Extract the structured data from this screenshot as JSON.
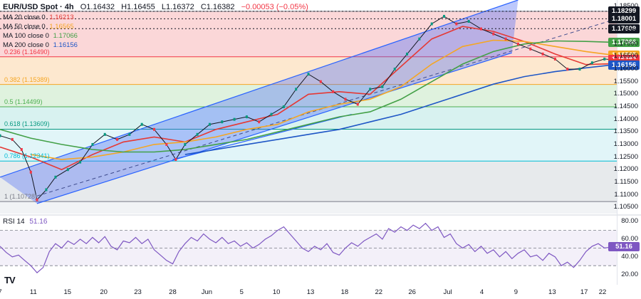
{
  "header": {
    "symbol": "EUR/USD Spot · 4h",
    "open": "O1.16432",
    "high": "H1.16455",
    "low": "L1.16372",
    "close": "C1.16382",
    "change": "−0.00053 (−0.05%)"
  },
  "ma_legend": [
    {
      "label": "MA 20 close 0",
      "value": "1.16213",
      "color": "#e53935"
    },
    {
      "label": "MA 50 close 0",
      "value": "1.16565",
      "color": "#f5a623"
    },
    {
      "label": "MA 100 close 0",
      "value": "1.17066",
      "color": "#43a047"
    },
    {
      "label": "MA 200 close 0",
      "value": "1.16156",
      "color": "#1e56c6"
    }
  ],
  "rsi_legend": {
    "label": "RSI 14",
    "value": "51.16"
  },
  "fib_labels": [
    {
      "text": "0.236 (1.16490)",
      "price": 1.1649
    },
    {
      "text": "0.382 (1.15389)",
      "price": 1.15389
    },
    {
      "text": "0.5 (1.14499)",
      "price": 1.14499
    },
    {
      "text": "0.618 (1.13609)",
      "price": 1.13609
    },
    {
      "text": "0.786 (1.12341)",
      "price": 1.12341
    },
    {
      "text": "1 (1.10728)",
      "price": 1.10728
    }
  ],
  "price_tags": [
    {
      "text": "1.18299",
      "price": 1.18299,
      "bg": "#131722"
    },
    {
      "text": "1.18001",
      "price": 1.18001,
      "bg": "#131722"
    },
    {
      "text": "1.17609",
      "price": 1.17609,
      "bg": "#131722"
    },
    {
      "text": "1.17066",
      "price": 1.17066,
      "bg": "#43a047"
    },
    {
      "text": "1.16565",
      "price": 1.16565,
      "bg": "#f5a623"
    },
    {
      "text": "1.16382",
      "price": 1.16382,
      "bg": "#f23645"
    },
    {
      "text": "1.16213",
      "price": 1.16213,
      "bg": "#e53935"
    },
    {
      "text": "1.16156",
      "price": 1.16156,
      "bg": "#1e56c6"
    }
  ],
  "rsi_tag": {
    "text": "51.16"
  },
  "logo": "TV",
  "chart_data": {
    "type": "line",
    "title": "EUR/USD Spot · 4h",
    "price_axis": {
      "ticks": [
        "1.18500",
        "1.17500",
        "1.17000",
        "1.16500",
        "1.16000",
        "1.15500",
        "1.15000",
        "1.14500",
        "1.14000",
        "1.13500",
        "1.13000",
        "1.12500",
        "1.12000",
        "1.11500",
        "1.11000",
        "1.10500"
      ],
      "range": [
        1.1025,
        1.1875
      ]
    },
    "rsi_axis": {
      "ticks": [
        "80.00",
        "60.00",
        "40.00",
        "20.00"
      ],
      "range": [
        10,
        85
      ],
      "upper": 70,
      "mid": 50,
      "lower": 30
    },
    "x_ticks": [
      {
        "label": "7",
        "t": 0.0
      },
      {
        "label": "11",
        "t": 0.0541
      },
      {
        "label": "15",
        "t": 0.1094
      },
      {
        "label": "20",
        "t": 0.1682
      },
      {
        "label": "23",
        "t": 0.2235
      },
      {
        "label": "28",
        "t": 0.28
      },
      {
        "label": "Jun",
        "t": 0.3353
      },
      {
        "label": "5",
        "t": 0.3918
      },
      {
        "label": "10",
        "t": 0.4482
      },
      {
        "label": "13",
        "t": 0.5035
      },
      {
        "label": "18",
        "t": 0.5588
      },
      {
        "label": "22",
        "t": 0.6141
      },
      {
        "label": "26",
        "t": 0.6682
      },
      {
        "label": "Jul",
        "t": 0.7259
      },
      {
        "label": "4",
        "t": 0.7812
      },
      {
        "label": "9",
        "t": 0.8365
      },
      {
        "label": "13",
        "t": 0.8953
      },
      {
        "label": "17",
        "t": 0.9471
      },
      {
        "label": "22",
        "t": 1.0
      }
    ],
    "fib_levels": [
      {
        "ratio": 0,
        "price": 1.18299
      },
      {
        "ratio": 0.236,
        "price": 1.1649
      },
      {
        "ratio": 0.382,
        "price": 1.15389
      },
      {
        "ratio": 0.5,
        "price": 1.14499
      },
      {
        "ratio": 0.618,
        "price": 1.13609
      },
      {
        "ratio": 0.786,
        "price": 1.12341
      },
      {
        "ratio": 1,
        "price": 1.10728
      }
    ],
    "fib_zone_colors": [
      "#f7b6b8",
      "#fbd6a8",
      "#c5e8c2",
      "#b8e8e4",
      "#c8ecf2",
      "#d4d8dd"
    ],
    "dotted_levels": [
      1.18299,
      1.18001,
      1.17609
    ],
    "channel": {
      "upper": [
        [
          0.0,
          1.117
        ],
        [
          0.84,
          1.1875
        ]
      ],
      "lower": [
        [
          0.06,
          1.1065
        ],
        [
          0.83,
          1.1665
        ]
      ],
      "mid": [
        [
          0.06,
          1.1095
        ],
        [
          1.0,
          1.18
        ]
      ]
    },
    "extra_trendlines": [
      [
        [
          0.28,
          1.124
        ],
        [
          0.57,
          1.142
        ]
      ]
    ],
    "price_points": [
      [
        0.0,
        1.1335
      ],
      [
        0.02,
        1.132
      ],
      [
        0.035,
        1.128
      ],
      [
        0.05,
        1.119
      ],
      [
        0.06,
        1.108
      ],
      [
        0.075,
        1.112
      ],
      [
        0.09,
        1.117
      ],
      [
        0.11,
        1.12
      ],
      [
        0.13,
        1.123
      ],
      [
        0.15,
        1.13
      ],
      [
        0.17,
        1.134
      ],
      [
        0.19,
        1.132
      ],
      [
        0.21,
        1.134
      ],
      [
        0.23,
        1.138
      ],
      [
        0.25,
        1.136
      ],
      [
        0.27,
        1.13
      ],
      [
        0.285,
        1.124
      ],
      [
        0.3,
        1.13
      ],
      [
        0.32,
        1.134
      ],
      [
        0.34,
        1.138
      ],
      [
        0.36,
        1.139
      ],
      [
        0.38,
        1.14
      ],
      [
        0.4,
        1.141
      ],
      [
        0.42,
        1.139
      ],
      [
        0.44,
        1.142
      ],
      [
        0.46,
        1.145
      ],
      [
        0.48,
        1.152
      ],
      [
        0.5,
        1.158
      ],
      [
        0.52,
        1.155
      ],
      [
        0.54,
        1.151
      ],
      [
        0.56,
        1.148
      ],
      [
        0.58,
        1.146
      ],
      [
        0.6,
        1.152
      ],
      [
        0.62,
        1.153
      ],
      [
        0.64,
        1.16
      ],
      [
        0.66,
        1.166
      ],
      [
        0.68,
        1.172
      ],
      [
        0.7,
        1.178
      ],
      [
        0.72,
        1.181
      ],
      [
        0.74,
        1.178
      ],
      [
        0.76,
        1.179
      ],
      [
        0.78,
        1.176
      ],
      [
        0.8,
        1.174
      ],
      [
        0.82,
        1.172
      ],
      [
        0.84,
        1.17
      ],
      [
        0.86,
        1.168
      ],
      [
        0.88,
        1.166
      ],
      [
        0.9,
        1.164
      ],
      [
        0.92,
        1.16
      ],
      [
        0.94,
        1.16
      ],
      [
        0.96,
        1.1625
      ],
      [
        0.98,
        1.164
      ],
      [
        0.99,
        1.1638
      ]
    ],
    "series": [
      {
        "name": "MA 20 close 0",
        "color": "#e53935",
        "points": [
          [
            0.0,
            1.129
          ],
          [
            0.05,
            1.125
          ],
          [
            0.1,
            1.12
          ],
          [
            0.15,
            1.126
          ],
          [
            0.2,
            1.131
          ],
          [
            0.25,
            1.133
          ],
          [
            0.3,
            1.131
          ],
          [
            0.35,
            1.136
          ],
          [
            0.4,
            1.139
          ],
          [
            0.45,
            1.142
          ],
          [
            0.5,
            1.15
          ],
          [
            0.55,
            1.151
          ],
          [
            0.6,
            1.15
          ],
          [
            0.65,
            1.161
          ],
          [
            0.7,
            1.172
          ],
          [
            0.75,
            1.177
          ],
          [
            0.8,
            1.175
          ],
          [
            0.85,
            1.171
          ],
          [
            0.9,
            1.166
          ],
          [
            0.95,
            1.1618
          ],
          [
            0.99,
            1.1621
          ]
        ]
      },
      {
        "name": "MA 50 close 0",
        "color": "#f5a623",
        "points": [
          [
            0.05,
            1.126
          ],
          [
            0.1,
            1.124
          ],
          [
            0.15,
            1.125
          ],
          [
            0.2,
            1.127
          ],
          [
            0.25,
            1.13
          ],
          [
            0.3,
            1.131
          ],
          [
            0.35,
            1.133
          ],
          [
            0.4,
            1.136
          ],
          [
            0.45,
            1.138
          ],
          [
            0.5,
            1.143
          ],
          [
            0.55,
            1.146
          ],
          [
            0.6,
            1.148
          ],
          [
            0.65,
            1.153
          ],
          [
            0.7,
            1.162
          ],
          [
            0.75,
            1.169
          ],
          [
            0.8,
            1.1715
          ],
          [
            0.85,
            1.171
          ],
          [
            0.9,
            1.169
          ],
          [
            0.95,
            1.167
          ],
          [
            0.99,
            1.1657
          ]
        ]
      },
      {
        "name": "MA 100 close 0",
        "color": "#43a047",
        "points": [
          [
            0.0,
            1.136
          ],
          [
            0.05,
            1.1325
          ],
          [
            0.1,
            1.13
          ],
          [
            0.15,
            1.128
          ],
          [
            0.2,
            1.127
          ],
          [
            0.25,
            1.127
          ],
          [
            0.3,
            1.128
          ],
          [
            0.35,
            1.13
          ],
          [
            0.4,
            1.132
          ],
          [
            0.45,
            1.135
          ],
          [
            0.5,
            1.138
          ],
          [
            0.55,
            1.141
          ],
          [
            0.6,
            1.143
          ],
          [
            0.65,
            1.148
          ],
          [
            0.7,
            1.155
          ],
          [
            0.75,
            1.162
          ],
          [
            0.8,
            1.167
          ],
          [
            0.85,
            1.17
          ],
          [
            0.9,
            1.1712
          ],
          [
            0.95,
            1.171
          ],
          [
            0.99,
            1.1707
          ]
        ]
      },
      {
        "name": "MA 200 close 0",
        "color": "#1e56c6",
        "points": [
          [
            0.3,
            1.126
          ],
          [
            0.35,
            1.128
          ],
          [
            0.4,
            1.13
          ],
          [
            0.45,
            1.132
          ],
          [
            0.5,
            1.134
          ],
          [
            0.55,
            1.136
          ],
          [
            0.6,
            1.139
          ],
          [
            0.65,
            1.142
          ],
          [
            0.7,
            1.146
          ],
          [
            0.75,
            1.15
          ],
          [
            0.8,
            1.154
          ],
          [
            0.85,
            1.157
          ],
          [
            0.9,
            1.159
          ],
          [
            0.95,
            1.1605
          ],
          [
            0.99,
            1.1616
          ]
        ]
      }
    ],
    "rsi_points": [
      [
        0.0,
        52
      ],
      [
        0.01,
        45
      ],
      [
        0.02,
        40
      ],
      [
        0.03,
        42
      ],
      [
        0.04,
        36
      ],
      [
        0.05,
        30
      ],
      [
        0.06,
        22
      ],
      [
        0.07,
        28
      ],
      [
        0.08,
        46
      ],
      [
        0.09,
        55
      ],
      [
        0.1,
        50
      ],
      [
        0.11,
        58
      ],
      [
        0.12,
        54
      ],
      [
        0.13,
        60
      ],
      [
        0.14,
        55
      ],
      [
        0.15,
        62
      ],
      [
        0.16,
        56
      ],
      [
        0.17,
        63
      ],
      [
        0.18,
        52
      ],
      [
        0.19,
        48
      ],
      [
        0.2,
        58
      ],
      [
        0.21,
        56
      ],
      [
        0.22,
        62
      ],
      [
        0.23,
        55
      ],
      [
        0.24,
        60
      ],
      [
        0.25,
        48
      ],
      [
        0.26,
        42
      ],
      [
        0.27,
        36
      ],
      [
        0.28,
        32
      ],
      [
        0.29,
        46
      ],
      [
        0.3,
        55
      ],
      [
        0.31,
        62
      ],
      [
        0.32,
        58
      ],
      [
        0.33,
        66
      ],
      [
        0.34,
        60
      ],
      [
        0.35,
        56
      ],
      [
        0.36,
        62
      ],
      [
        0.37,
        55
      ],
      [
        0.38,
        58
      ],
      [
        0.39,
        52
      ],
      [
        0.4,
        56
      ],
      [
        0.41,
        50
      ],
      [
        0.42,
        54
      ],
      [
        0.43,
        60
      ],
      [
        0.44,
        64
      ],
      [
        0.45,
        70
      ],
      [
        0.46,
        74
      ],
      [
        0.47,
        66
      ],
      [
        0.48,
        58
      ],
      [
        0.49,
        50
      ],
      [
        0.5,
        46
      ],
      [
        0.51,
        52
      ],
      [
        0.52,
        48
      ],
      [
        0.53,
        55
      ],
      [
        0.54,
        45
      ],
      [
        0.55,
        42
      ],
      [
        0.56,
        50
      ],
      [
        0.57,
        56
      ],
      [
        0.58,
        52
      ],
      [
        0.59,
        58
      ],
      [
        0.6,
        62
      ],
      [
        0.61,
        66
      ],
      [
        0.62,
        60
      ],
      [
        0.63,
        72
      ],
      [
        0.64,
        68
      ],
      [
        0.65,
        74
      ],
      [
        0.66,
        70
      ],
      [
        0.67,
        76
      ],
      [
        0.68,
        72
      ],
      [
        0.69,
        78
      ],
      [
        0.7,
        70
      ],
      [
        0.71,
        74
      ],
      [
        0.72,
        62
      ],
      [
        0.73,
        66
      ],
      [
        0.74,
        55
      ],
      [
        0.75,
        50
      ],
      [
        0.76,
        54
      ],
      [
        0.77,
        46
      ],
      [
        0.78,
        52
      ],
      [
        0.79,
        44
      ],
      [
        0.8,
        48
      ],
      [
        0.81,
        40
      ],
      [
        0.82,
        46
      ],
      [
        0.83,
        38
      ],
      [
        0.84,
        44
      ],
      [
        0.85,
        48
      ],
      [
        0.86,
        40
      ],
      [
        0.87,
        42
      ],
      [
        0.88,
        36
      ],
      [
        0.89,
        44
      ],
      [
        0.9,
        40
      ],
      [
        0.91,
        30
      ],
      [
        0.92,
        34
      ],
      [
        0.93,
        28
      ],
      [
        0.94,
        36
      ],
      [
        0.95,
        46
      ],
      [
        0.96,
        52
      ],
      [
        0.97,
        55
      ],
      [
        0.98,
        50
      ],
      [
        0.99,
        51
      ]
    ]
  }
}
